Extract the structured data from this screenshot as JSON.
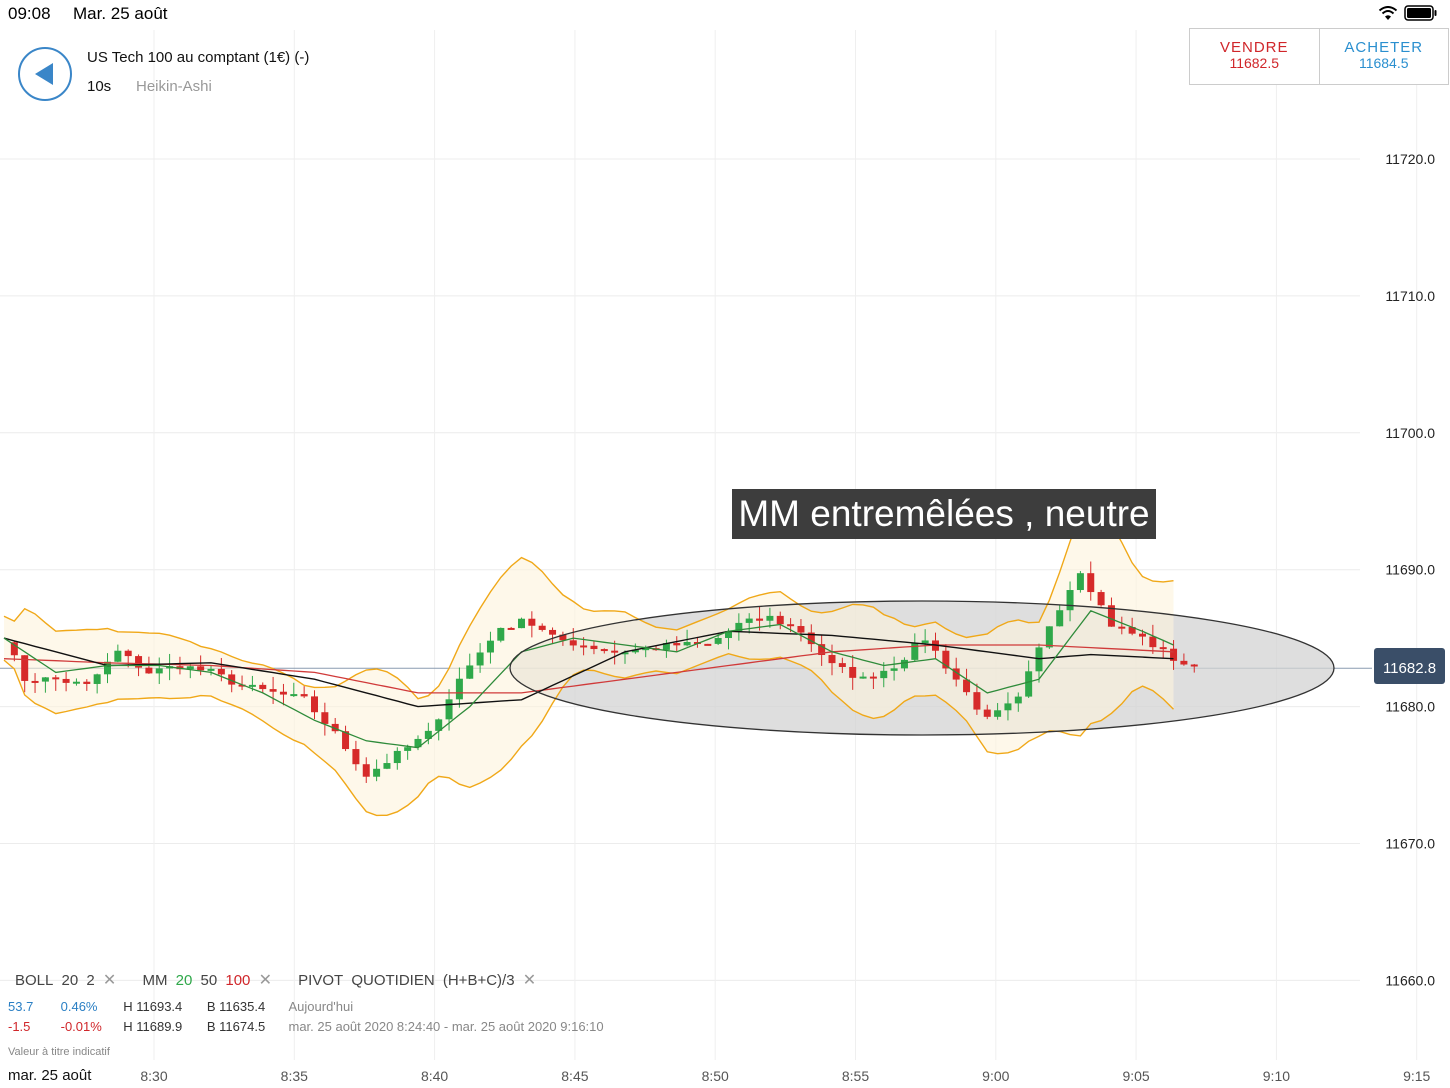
{
  "status": {
    "time": "09:08",
    "date": "Mar. 25 août"
  },
  "header": {
    "instrument": "US Tech 100 au comptant (1€) (-)",
    "interval": "10s",
    "chart_style": "Heikin-Ashi"
  },
  "trade": {
    "sell_label": "VENDRE",
    "sell_price": "11682.5",
    "buy_label": "ACHETER",
    "buy_price": "11684.5"
  },
  "annotation": "MM entremêlées , neutre",
  "current_price": "11682.8",
  "indicators": {
    "boll": "BOLL",
    "boll_period": "20",
    "boll_dev": "2",
    "mm": "MM",
    "mm_fast": "20",
    "mm_mid": "50",
    "mm_slow": "100",
    "pivot": "PIVOT",
    "pivot_period": "QUOTIDIEN",
    "pivot_formula": "(H+B+C)/3",
    "close": "✕"
  },
  "stats": [
    {
      "change": "53.7",
      "pct": "0.46%",
      "high": "H 11693.4",
      "low": "B 11635.4",
      "range": "Aujourd'hui"
    },
    {
      "change": "-1.5",
      "pct": "-0.01%",
      "high": "H 11689.9",
      "low": "B 11674.5",
      "range": "mar. 25 août 2020 8:24:40 - mar. 25 août 2020 9:16:10"
    }
  ],
  "disclaimer": "Valeur à titre indicatif",
  "date_label": "mar. 25 août",
  "colors": {
    "up": "#2fa84a",
    "down": "#d62a2a",
    "boll": "#f0a818",
    "ma20": "#2e8b3a",
    "ma50": "#111111",
    "ma100": "#d03a3a",
    "accent": "#3a86c8"
  },
  "chart_data": {
    "type": "candlestick",
    "style": "Heikin-Ashi",
    "y_ticks": [
      "11720.0",
      "11710.0",
      "11700.0",
      "11690.0",
      "11680.0",
      "11670.0",
      "11660.0"
    ],
    "ylim": [
      11660,
      11725
    ],
    "x_ticks": [
      "8:30",
      "8:35",
      "8:40",
      "8:45",
      "8:50",
      "8:55",
      "9:00",
      "9:05",
      "9:10",
      "9:15"
    ],
    "path": [
      [
        0,
        11685
      ],
      [
        2,
        11682
      ],
      [
        5,
        11682
      ],
      [
        8,
        11681.5
      ],
      [
        11,
        11684
      ],
      [
        14,
        11682.5
      ],
      [
        17,
        11683
      ],
      [
        20,
        11682.5
      ],
      [
        23,
        11681.5
      ],
      [
        26,
        11681
      ],
      [
        29,
        11680.5
      ],
      [
        32,
        11678
      ],
      [
        35,
        11675
      ],
      [
        38,
        11676.5
      ],
      [
        41,
        11678
      ],
      [
        44,
        11682
      ],
      [
        47,
        11685
      ],
      [
        50,
        11686.5
      ],
      [
        53,
        11685
      ],
      [
        56,
        11684.5
      ],
      [
        59,
        11684
      ],
      [
        62,
        11684.2
      ],
      [
        65,
        11684.5
      ],
      [
        68,
        11684.5
      ],
      [
        71,
        11686
      ],
      [
        74,
        11686.5
      ],
      [
        77,
        11685.5
      ],
      [
        80,
        11683
      ],
      [
        83,
        11682
      ],
      [
        86,
        11683
      ],
      [
        89,
        11685
      ],
      [
        92,
        11682
      ],
      [
        95,
        11679
      ],
      [
        98,
        11680.5
      ],
      [
        101,
        11686
      ],
      [
        104,
        11690
      ],
      [
        107,
        11686
      ],
      [
        110,
        11685
      ],
      [
        113,
        11683.5
      ],
      [
        115,
        11682.8
      ]
    ],
    "ma20": [
      [
        0,
        11685
      ],
      [
        5,
        11682.5
      ],
      [
        10,
        11683
      ],
      [
        15,
        11683
      ],
      [
        20,
        11682.5
      ],
      [
        25,
        11681
      ],
      [
        30,
        11679
      ],
      [
        35,
        11677.5
      ],
      [
        40,
        11677
      ],
      [
        45,
        11680
      ],
      [
        50,
        11684
      ],
      [
        55,
        11685
      ],
      [
        60,
        11684.5
      ],
      [
        65,
        11684
      ],
      [
        70,
        11685.5
      ],
      [
        75,
        11686
      ],
      [
        80,
        11684
      ],
      [
        85,
        11683
      ],
      [
        90,
        11683.5
      ],
      [
        95,
        11681
      ],
      [
        100,
        11682
      ],
      [
        105,
        11687
      ],
      [
        110,
        11685.5
      ],
      [
        113,
        11684.5
      ]
    ],
    "ma50": [
      [
        0,
        11685
      ],
      [
        10,
        11683
      ],
      [
        20,
        11683.2
      ],
      [
        30,
        11682
      ],
      [
        40,
        11680
      ],
      [
        50,
        11680.5
      ],
      [
        60,
        11684
      ],
      [
        70,
        11685.5
      ],
      [
        80,
        11685.2
      ],
      [
        90,
        11684.5
      ],
      [
        100,
        11683.5
      ],
      [
        105,
        11683.8
      ],
      [
        113,
        11683.5
      ]
    ],
    "ma100": [
      [
        0,
        11683.5
      ],
      [
        10,
        11683.2
      ],
      [
        20,
        11683
      ],
      [
        30,
        11682.5
      ],
      [
        40,
        11681
      ],
      [
        50,
        11681
      ],
      [
        60,
        11682
      ],
      [
        70,
        11683
      ],
      [
        80,
        11684
      ],
      [
        90,
        11684.5
      ],
      [
        100,
        11684.5
      ],
      [
        113,
        11684
      ]
    ]
  }
}
